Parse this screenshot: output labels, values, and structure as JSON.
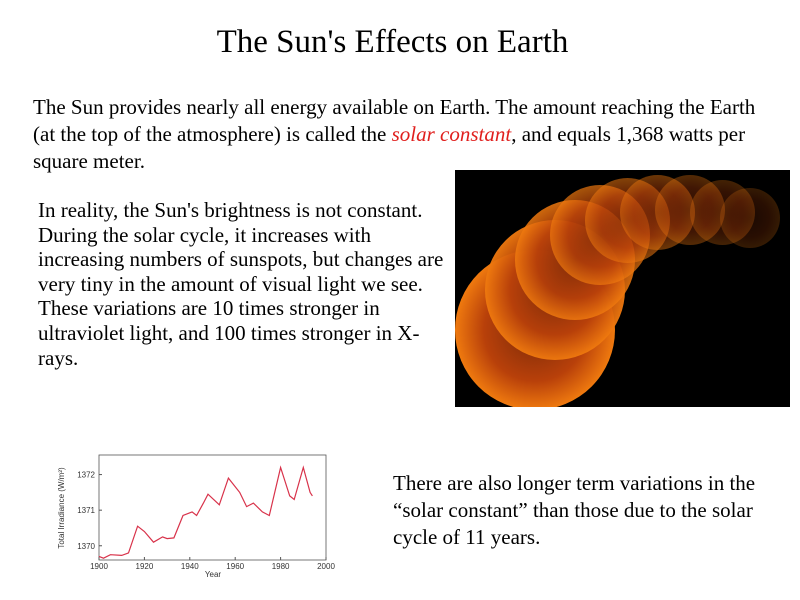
{
  "slide": {
    "title": "The Sun's Effects on Earth",
    "intro_before": "The Sun provides nearly all energy available on Earth.  The amount reaching the Earth (at the top of the atmosphere) is called the ",
    "intro_term": "solar constant",
    "intro_after": ", and equals 1,368 watts per square meter.",
    "variation_text": "In reality, the Sun's brightness is not constant.  During the solar cycle, it increases with increasing numbers of sunspots, but changes are very tiny in the amount of visual light we see. These variations are 10 times stronger in ultraviolet light, and 100 times stronger in X-rays.",
    "longterm_text": "There are also longer term variations in the “solar constant” than those due to the solar cycle of 11 years.",
    "term_color": "#e0201e"
  },
  "chart_data": {
    "type": "line",
    "title": "",
    "xlabel": "Year",
    "ylabel": "Total Irradiance (W/m²)",
    "xlim": [
      1900,
      2000
    ],
    "ylim": [
      1369.6,
      1372.55
    ],
    "xticks": [
      "1900",
      "1920",
      "1940",
      "1960",
      "1980",
      "2000"
    ],
    "yticks": [
      "1370",
      "1371",
      "1372"
    ],
    "series": [
      {
        "name": "Total irradiance",
        "color": "#d8324a",
        "x": [
          1900,
          1902,
          1905,
          1910,
          1913,
          1917,
          1920,
          1924,
          1928,
          1930,
          1933,
          1937,
          1941,
          1943,
          1946,
          1948,
          1953,
          1957,
          1962,
          1965,
          1968,
          1972,
          1975,
          1980,
          1984,
          1986,
          1990,
          1993,
          1994
        ],
        "y": [
          1369.7,
          1369.65,
          1369.75,
          1369.73,
          1369.8,
          1370.55,
          1370.4,
          1370.1,
          1370.25,
          1370.2,
          1370.22,
          1370.85,
          1370.95,
          1370.85,
          1371.2,
          1371.45,
          1371.15,
          1371.9,
          1371.5,
          1371.1,
          1371.2,
          1370.95,
          1370.85,
          1372.2,
          1371.4,
          1371.3,
          1372.2,
          1371.5,
          1371.4
        ]
      }
    ]
  }
}
